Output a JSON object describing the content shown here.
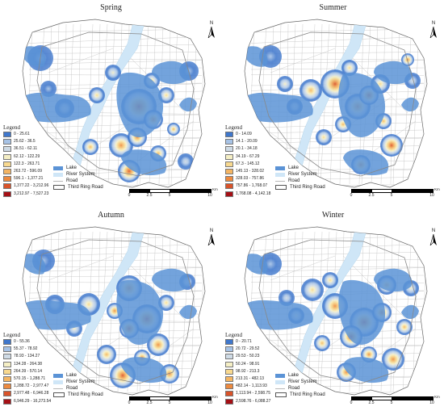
{
  "colors": {
    "lake": "#5b93d6",
    "river": "#cfe6f7",
    "road": "#b8b8b8",
    "ring": "#888888",
    "scale": [
      "#3f77cc",
      "#a7c3e6",
      "#cfdbe6",
      "#f5efc5",
      "#f8d98f",
      "#f4b563",
      "#ed8a3f",
      "#d9532a",
      "#a50f15"
    ]
  },
  "symbols": {
    "lake": "Lake",
    "river": "River System",
    "road": "Road",
    "ring": "Third Ring Road"
  },
  "north_label": "N",
  "legend_title": "Legend",
  "scalebar": {
    "ticks": [
      "0",
      "2.5",
      "5",
      "10"
    ],
    "unit": "Km"
  },
  "panels": [
    {
      "title": "Spring",
      "classes": [
        "0 - 25.61",
        "25.62 - 36.5",
        "36.51 - 62.11",
        "62.12 - 122.29",
        "122.3 - 263.71",
        "263.72 - 596.09",
        "596.1 - 1,377.21",
        "1,377.22 - 3,212.96",
        "3,212.97 - 7,527.23"
      ]
    },
    {
      "title": "Summer",
      "classes": [
        "0 - 14.09",
        "14.1 - 20.09",
        "20.1 - 34.18",
        "34.19 - 67.29",
        "67.3 - 145.12",
        "145.13 - 328.02",
        "328.03 - 757.86",
        "757.86 - 1,768.07",
        "1,768.08 - 4,142.18"
      ]
    },
    {
      "title": "Autumn",
      "classes": [
        "0 - 55.36",
        "55.37 - 78.92",
        "78.93 - 134.27",
        "134.28 - 264.38",
        "264.39 - 570.14",
        "570.15 - 1,288.71",
        "1,288.72 - 2,977.47",
        "2,977.48 - 6,946.28",
        "6,946.29 - 16,273.54"
      ]
    },
    {
      "title": "Winter",
      "classes": [
        "0 - 20.71",
        "20.72 - 29.52",
        "29.53 - 50.23",
        "50.24 - 98.91",
        "98.92 - 213.3",
        "213.31 - 482.13",
        "482.14 - 1,113.93",
        "1,113.94 - 2,598.75",
        "2,598.76 - 6,088.27"
      ]
    }
  ]
}
